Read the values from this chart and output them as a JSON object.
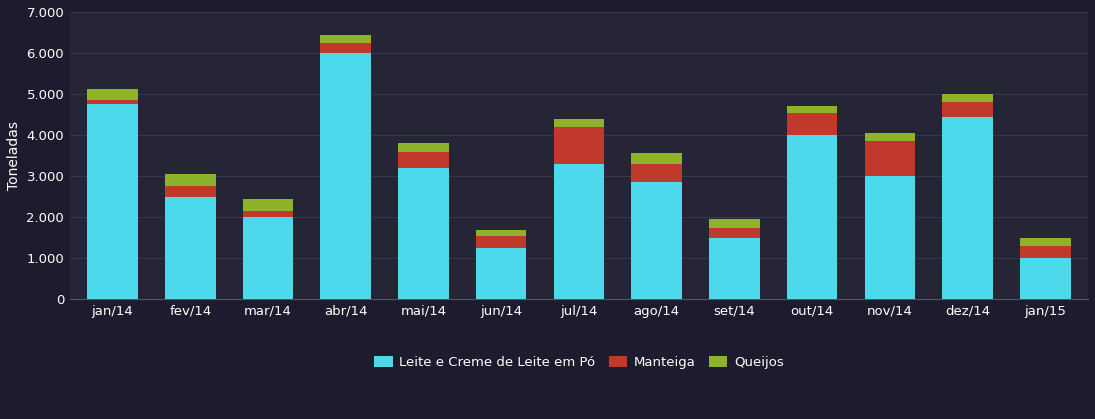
{
  "categories": [
    "jan/14",
    "fev/14",
    "mar/14",
    "abr/14",
    "mai/14",
    "jun/14",
    "jul/14",
    "ago/14",
    "set/14",
    "out/14",
    "nov/14",
    "dez/14",
    "jan/15"
  ],
  "leite": [
    4750,
    2500,
    2000,
    6000,
    3200,
    1250,
    3300,
    2850,
    1500,
    4000,
    3000,
    4450,
    1000
  ],
  "manteiga": [
    100,
    250,
    150,
    250,
    400,
    300,
    900,
    450,
    250,
    550,
    850,
    350,
    300
  ],
  "queijo": [
    270,
    300,
    300,
    200,
    200,
    150,
    200,
    270,
    200,
    150,
    200,
    200,
    200
  ],
  "color_leite": "#4DD9EC",
  "color_manteiga": "#C0392B",
  "color_queijo": "#8DB32A",
  "ylabel": "Toneladas",
  "ylim": [
    0,
    7000
  ],
  "yticks": [
    0,
    1000,
    2000,
    3000,
    4000,
    5000,
    6000,
    7000
  ],
  "ytick_labels": [
    "0",
    "1.000",
    "2.000",
    "3.000",
    "4.000",
    "5.000",
    "6.000",
    "7.000"
  ],
  "legend_leite": "Leite e Creme de Leite em Pó",
  "legend_manteiga": "Manteiga",
  "legend_queijo": "Queijos",
  "bg_color": "#1C1C2E",
  "plot_color": "#252535",
  "text_color": "#FFFFFF",
  "grid_color": "#3A3A5A",
  "figsize": [
    10.95,
    4.19
  ],
  "dpi": 100
}
